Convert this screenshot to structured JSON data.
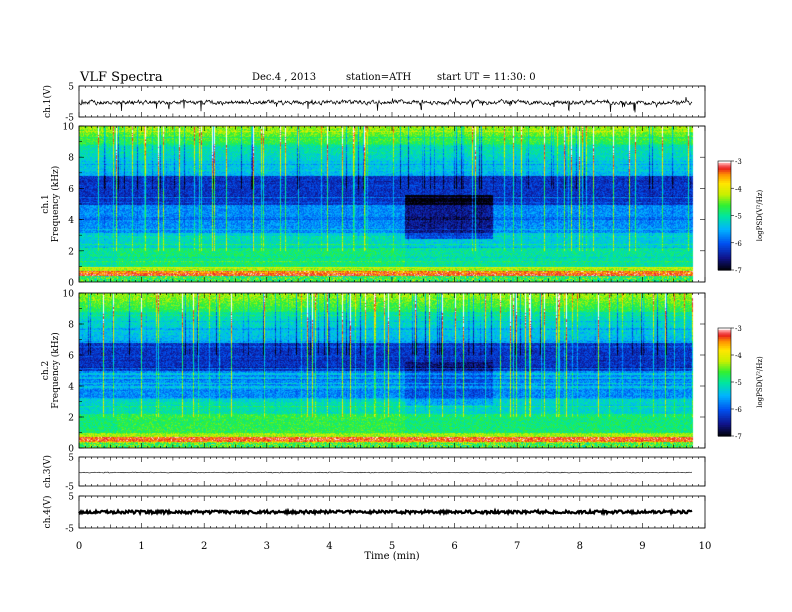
{
  "header": {
    "title": "VLF  Spectra",
    "date": "Dec.4  , 2013",
    "station": "station=ATH",
    "start_ut": "start  UT  =   11:30: 0"
  },
  "chart_data": [
    {
      "type": "line",
      "name": "ch1-waveform",
      "ylabel": "ch.1(V)",
      "yticks": [
        5,
        -5
      ],
      "ylim": [
        -5,
        5
      ],
      "xlim": [
        0,
        10
      ],
      "data_end_min": 9.8
    },
    {
      "type": "heatmap",
      "name": "ch1-spectrogram",
      "ylabel": "ch.1\nFrequency (kHz)",
      "ylabel_lines": [
        "ch.1",
        "Frequency (kHz)"
      ],
      "yticks": [
        0,
        2,
        4,
        6,
        8,
        10
      ],
      "ylim": [
        0,
        10
      ],
      "xlim": [
        0,
        10
      ],
      "data_end_min": 9.8,
      "colorbar": {
        "label": "logPSD(V²/Hz)",
        "ticks": [
          -3,
          -4,
          -5,
          -6,
          -7
        ],
        "range": [
          -7,
          -3
        ]
      }
    },
    {
      "type": "heatmap",
      "name": "ch2-spectrogram",
      "ylabel_lines": [
        "ch.2",
        "Frequency (kHz)"
      ],
      "yticks": [
        0,
        2,
        4,
        6,
        8,
        10
      ],
      "ylim": [
        0,
        10
      ],
      "xlim": [
        0,
        10
      ],
      "data_end_min": 9.8,
      "colorbar": {
        "label": "logPSD(V²/Hz)",
        "ticks": [
          -3,
          -4,
          -5,
          -6,
          -7
        ],
        "range": [
          -7,
          -3
        ]
      }
    },
    {
      "type": "line",
      "name": "ch3-waveform",
      "ylabel": "ch.3(V)",
      "yticks": [
        5,
        -5
      ],
      "ylim": [
        -5,
        5
      ],
      "xlim": [
        0,
        10
      ],
      "data_end_min": 9.8
    },
    {
      "type": "line",
      "name": "ch4-waveform",
      "ylabel": "ch.4(V)",
      "yticks": [
        5,
        -5
      ],
      "ylim": [
        -5,
        5
      ],
      "xlim": [
        0,
        10
      ],
      "data_end_min": 9.8
    }
  ],
  "xaxis": {
    "label": "Time  (min)",
    "ticks": [
      0,
      1,
      2,
      3,
      4,
      5,
      6,
      7,
      8,
      9,
      10
    ]
  },
  "colors": {
    "colormap": [
      "#000000",
      "#10148c",
      "#0050f0",
      "#00b4ff",
      "#00e6a0",
      "#30f030",
      "#c8f000",
      "#ffe600",
      "#ff9600",
      "#e81e1e",
      "#ff8c8c",
      "#ffffff"
    ]
  }
}
